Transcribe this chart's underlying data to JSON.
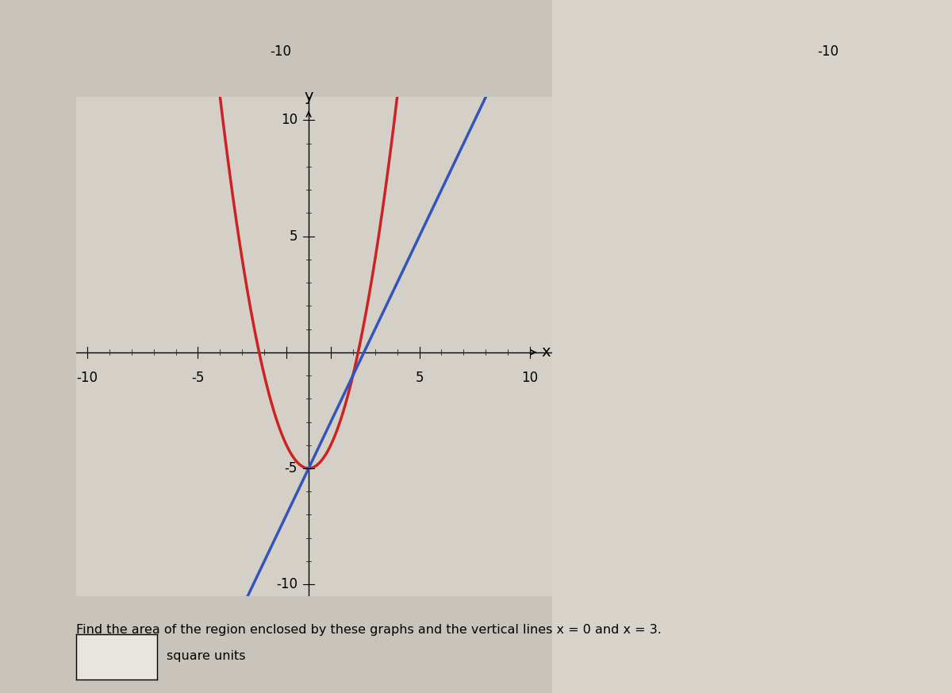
{
  "xlabel": "x",
  "ylabel": "y",
  "xlim": [
    -10,
    10
  ],
  "ylim": [
    -10,
    10
  ],
  "xticks": [
    -10,
    -5,
    5,
    10
  ],
  "yticks": [
    -10,
    -5,
    5,
    10
  ],
  "ytick_labels": [
    "-10",
    "-5",
    "5",
    "10"
  ],
  "xtick_labels": [
    "-10",
    "-5",
    "5",
    "10"
  ],
  "parabola_color": "#cc2222",
  "line_color": "#3355bb",
  "background_color": "#c8c4bc",
  "plot_bg_color": "#d4d0c8",
  "annotation_text": "Find the area of the region enclosed by these graphs and the vertical lines x = 0 and x = 3.",
  "answer_label": "square units",
  "line_width": 2.5,
  "font_size": 12
}
